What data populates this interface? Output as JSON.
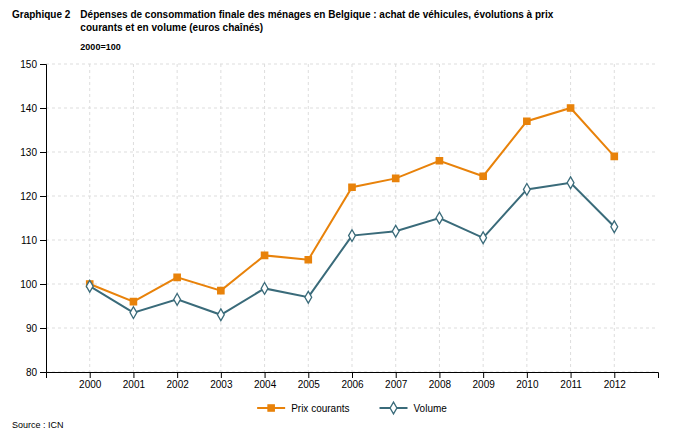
{
  "chart_data": {
    "type": "line",
    "title": "Dépenses de consommation finale des ménages en Belgique : achat de véhicules, évolutions à prix\ncourants et en volume (euros chaînés)",
    "subtitle": "2000=100",
    "annotations": [
      "Graphique 2",
      "Source : ICN"
    ],
    "x": [
      2000,
      2001,
      2002,
      2003,
      2004,
      2005,
      2006,
      2007,
      2008,
      2009,
      2010,
      2011,
      2012
    ],
    "series": [
      {
        "name": "Prix courants",
        "color": "#E8820A",
        "marker": "square",
        "values": [
          100,
          96,
          101.5,
          98.5,
          106.5,
          105.5,
          122,
          124,
          128,
          124.5,
          137,
          140,
          129
        ]
      },
      {
        "name": "Volume",
        "color": "#3A6B7A",
        "marker": "diamond-open",
        "values": [
          99.5,
          93.5,
          96.5,
          93,
          99,
          97,
          111,
          112,
          115,
          110.5,
          121.5,
          123,
          113
        ]
      }
    ],
    "xlim": [
      1999,
      2013
    ],
    "xticks": [
      2000,
      2001,
      2002,
      2003,
      2004,
      2005,
      2006,
      2007,
      2008,
      2009,
      2010,
      2011,
      2012
    ],
    "ylim": [
      80,
      150
    ],
    "yticks": [
      80,
      90,
      100,
      110,
      120,
      130,
      140,
      150
    ],
    "grid": true,
    "legend": "bottom"
  }
}
